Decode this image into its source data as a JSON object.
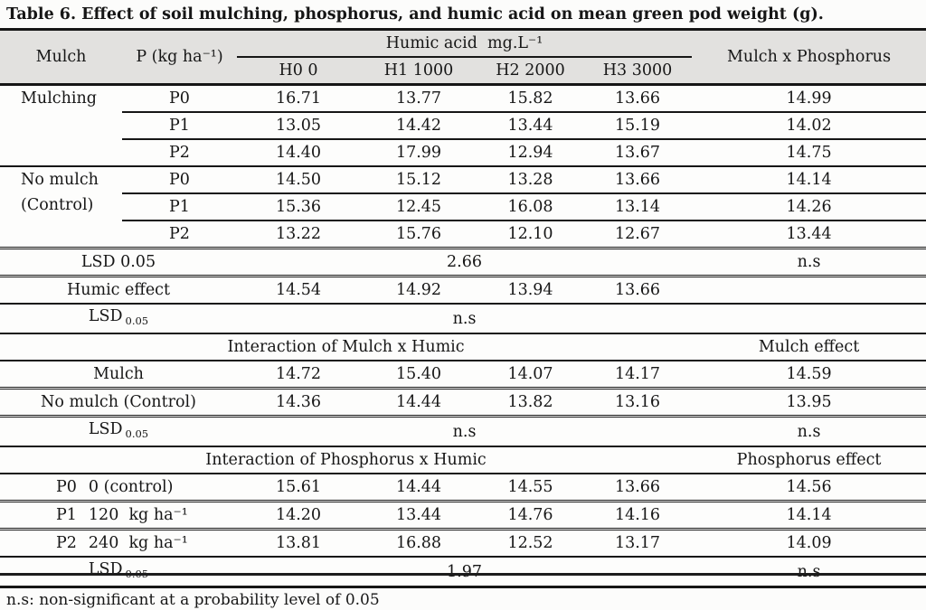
{
  "title": "Table 6. Effect of soil mulching, phosphorus, and humic acid on mean green pod weight (g).",
  "colors": {
    "header_bg": "#e2e1df",
    "border": "#161616",
    "text": "#161616",
    "page_bg": "#fcfcfb"
  },
  "header": {
    "mulch": "Mulch",
    "phosphorus": "P (kg ha⁻¹)",
    "humic_acid": "Humic acid  mg.L⁻¹",
    "humic_levels": [
      "H0 0",
      "H1 1000",
      "H2 2000",
      "H3 3000"
    ],
    "mulch_x_phosphorus": "Mulch x Phosphorus"
  },
  "mulching_section": {
    "label": "Mulching",
    "rows": [
      {
        "p": "P0",
        "h": [
          "16.71",
          "13.77",
          "15.82",
          "13.66"
        ],
        "mxp": "14.99"
      },
      {
        "p": "P1",
        "h": [
          "13.05",
          "14.42",
          "13.44",
          "15.19"
        ],
        "mxp": "14.02"
      },
      {
        "p": "P2",
        "h": [
          "14.40",
          "17.99",
          "12.94",
          "13.67"
        ],
        "mxp": "14.75"
      }
    ]
  },
  "no_mulch_section": {
    "label_line1": "No mulch",
    "label_line2": "(Control)",
    "rows": [
      {
        "p": "P0",
        "h": [
          "14.50",
          "15.12",
          "13.28",
          "13.66"
        ],
        "mxp": "14.14"
      },
      {
        "p": "P1",
        "h": [
          "15.36",
          "12.45",
          "16.08",
          "13.14"
        ],
        "mxp": "14.26"
      },
      {
        "p": "P2",
        "h": [
          "13.22",
          "15.76",
          "12.10",
          "12.67"
        ],
        "mxp": "13.44"
      }
    ]
  },
  "lsd_mulch_phosphorus": {
    "label": "LSD 0.05",
    "value": "2.66",
    "effect": "n.s"
  },
  "humic_effect": {
    "label": "Humic effect",
    "values": [
      "14.54",
      "14.92",
      "13.94",
      "13.66"
    ]
  },
  "lsd_humic": {
    "label": "LSD",
    "sub": "0.05",
    "value": "n.s"
  },
  "mulch_humic": {
    "heading": "Interaction of Mulch x Humic",
    "effect_heading": "Mulch effect",
    "rows": [
      {
        "label": "Mulch",
        "values": [
          "14.72",
          "15.40",
          "14.07",
          "14.17"
        ],
        "effect": "14.59"
      },
      {
        "label": "No mulch (Control)",
        "values": [
          "14.36",
          "14.44",
          "13.82",
          "13.16"
        ],
        "effect": "13.95"
      }
    ],
    "lsd": {
      "label": "LSD",
      "sub": "0.05",
      "value": "n.s",
      "effect": "n.s"
    }
  },
  "phosphorus_humic": {
    "heading": "Interaction of Phosphorus x Humic",
    "effect_heading": "Phosphorus effect",
    "rows": [
      {
        "code": "P0",
        "desc": "0 (control)",
        "values": [
          "15.61",
          "14.44",
          "14.55",
          "13.66"
        ],
        "effect": "14.56"
      },
      {
        "code": "P1",
        "desc": "120  kg ha⁻¹",
        "values": [
          "14.20",
          "13.44",
          "14.76",
          "14.16"
        ],
        "effect": "14.14"
      },
      {
        "code": "P2",
        "desc": "240  kg ha⁻¹",
        "values": [
          "13.81",
          "16.88",
          "12.52",
          "13.17"
        ],
        "effect": "14.09"
      }
    ],
    "lsd": {
      "label": "LSD",
      "sub": "0.05",
      "value": "1.97",
      "effect": "n.s"
    }
  },
  "footnote": "n.s: non-significant at a probability level of 0.05"
}
